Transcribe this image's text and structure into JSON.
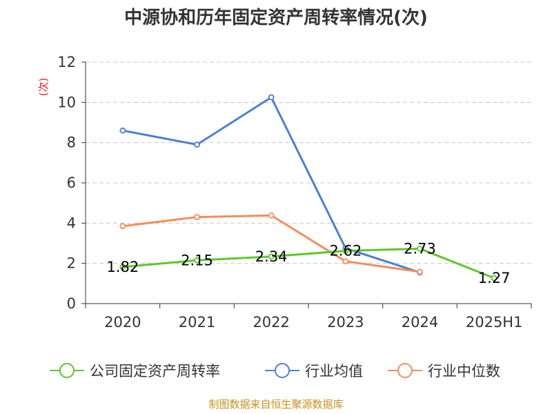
{
  "source_note": "制图数据来自恒生聚源数据库",
  "chart_data": {
    "type": "line",
    "title": "中源协和历年固定资产周转率情况(次)",
    "unit_label": "(次)",
    "categories": [
      "2020",
      "2021",
      "2022",
      "2023",
      "2024",
      "2025H1"
    ],
    "ylim": [
      0,
      12
    ],
    "yticks": [
      0,
      2,
      4,
      6,
      8,
      10,
      12
    ],
    "grid": true,
    "legend_position": "bottom",
    "series": [
      {
        "name": "公司固定资产周转率",
        "color": "#5ec62a",
        "values": [
          1.82,
          2.15,
          2.34,
          2.62,
          2.73,
          1.27
        ],
        "labels": [
          "1.82",
          "2.15",
          "2.34",
          "2.62",
          "2.73",
          "1.27"
        ]
      },
      {
        "name": "行业均值",
        "color": "#4a7fd6",
        "values": [
          8.6,
          7.9,
          10.25,
          2.75,
          1.55,
          null
        ],
        "labels": []
      },
      {
        "name": "行业中位数",
        "color": "#f58c5a",
        "values": [
          3.85,
          4.3,
          4.38,
          2.1,
          1.58,
          null
        ],
        "labels": []
      }
    ]
  }
}
